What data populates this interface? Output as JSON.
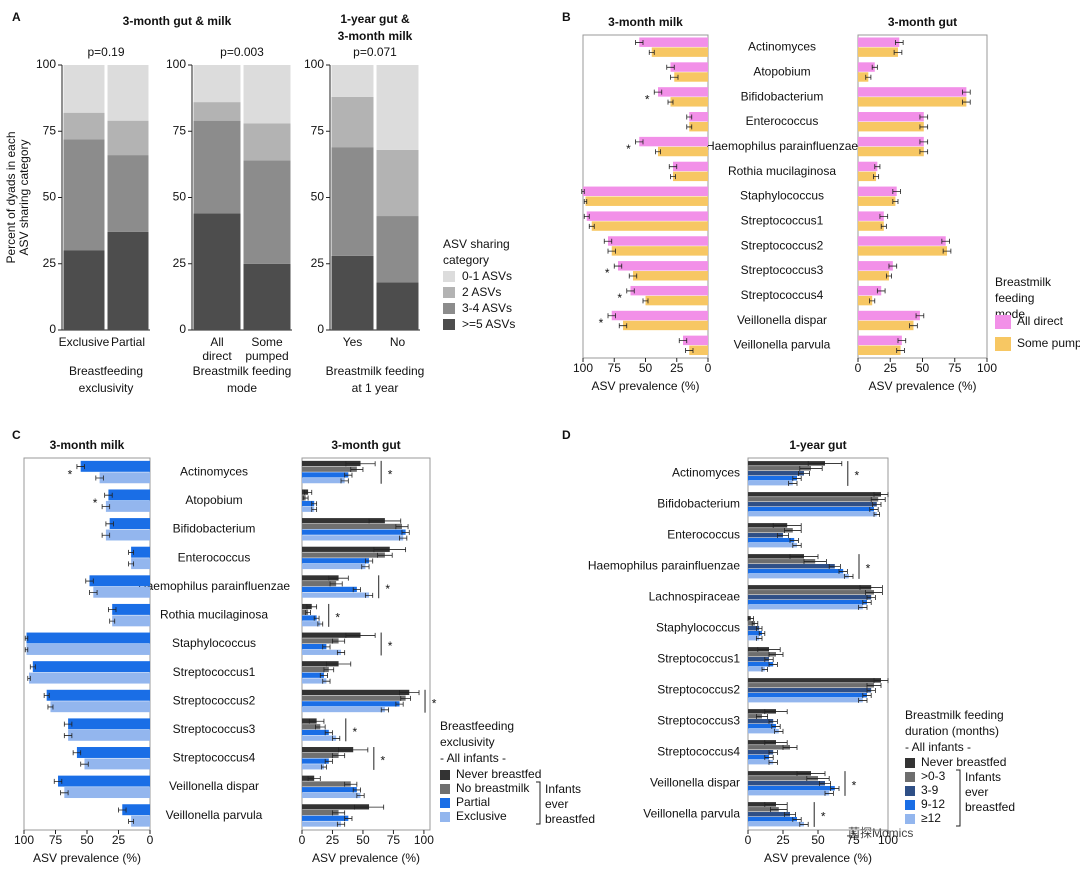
{
  "chart_data": [
    {
      "type": "stacked_bar",
      "panel_label": "A",
      "title": [
        "3-month gut & milk"
      ],
      "subtitle": "p=0.19",
      "ylabel": [
        "Percent of dyads in each",
        "ASV sharing category"
      ],
      "categories": [
        [
          "Exclusive"
        ],
        [
          "Partial"
        ]
      ],
      "xlabel": [
        "Breastfeeding",
        "exclusivity"
      ],
      "ylim": [
        0,
        100
      ],
      "yticks": [
        0,
        25,
        50,
        75,
        100
      ],
      "series": [
        {
          "color": "#4d4d4d",
          "values": [
            30,
            37
          ]
        },
        {
          "color": "#8c8c8c",
          "values": [
            42,
            29
          ]
        },
        {
          "color": "#b3b3b3",
          "values": [
            10,
            13
          ]
        },
        {
          "color": "#dcdcdc",
          "values": [
            18,
            21
          ]
        }
      ]
    },
    {
      "type": "stacked_bar",
      "subtitle": "p=0.003",
      "categories": [
        [
          "All",
          "direct"
        ],
        [
          "Some",
          "pumped"
        ]
      ],
      "xlabel": [
        "Breastmilk feeding",
        "mode"
      ],
      "ylim": [
        0,
        100
      ],
      "yticks": [
        0,
        25,
        50,
        75,
        100
      ],
      "series": [
        {
          "color": "#4d4d4d",
          "values": [
            44,
            25
          ]
        },
        {
          "color": "#8c8c8c",
          "values": [
            35,
            39
          ]
        },
        {
          "color": "#b3b3b3",
          "values": [
            7,
            14
          ]
        },
        {
          "color": "#dcdcdc",
          "values": [
            14,
            22
          ]
        }
      ]
    },
    {
      "type": "stacked_bar",
      "title": [
        "1-year gut &",
        "3-month milk"
      ],
      "subtitle": "p=0.071",
      "categories": [
        [
          "Yes"
        ],
        [
          "No"
        ]
      ],
      "xlabel": [
        "Breastmilk feeding",
        "at 1 year"
      ],
      "ylim": [
        0,
        100
      ],
      "yticks": [
        0,
        25,
        50,
        75,
        100
      ],
      "series": [
        {
          "color": "#4d4d4d",
          "values": [
            28,
            18
          ]
        },
        {
          "color": "#8c8c8c",
          "values": [
            41,
            25
          ]
        },
        {
          "color": "#b3b3b3",
          "values": [
            19,
            25
          ]
        },
        {
          "color": "#dcdcdc",
          "values": [
            12,
            32
          ]
        }
      ],
      "legend": {
        "title": [
          "ASV sharing",
          "category"
        ],
        "entries": [
          {
            "name": "0-1 ASVs",
            "color": "#dcdcdc"
          },
          {
            "name": "2 ASVs",
            "color": "#b3b3b3"
          },
          {
            "name": "3-4 ASVs",
            "color": "#8c8c8c"
          },
          {
            "name": ">=5 ASVs",
            "color": "#4d4d4d"
          }
        ]
      }
    },
    {
      "type": "hbar",
      "panel_label": "B",
      "title": "3-month milk",
      "x_reversed": true,
      "categories": [
        "Actinomyces",
        "Atopobium",
        "Bifidobacterium",
        "Enterococcus",
        "Haemophilus parainfluenzae",
        "Rothia mucilaginosa",
        "Staphylococcus",
        "Streptococcus1",
        "Streptococcus2",
        "Streptococcus3",
        "Streptococcus4",
        "Veillonella dispar",
        "Veillonella parvula"
      ],
      "markers": [
        null,
        null,
        "*",
        null,
        "*",
        null,
        null,
        null,
        null,
        "*",
        "*",
        "*",
        null
      ],
      "xlim": [
        0,
        100
      ],
      "xticks": [
        0,
        25,
        50,
        75,
        100
      ],
      "xlabel": "ASV prevalence (%)",
      "series": [
        {
          "color": "#f290e8",
          "values": [
            55,
            30,
            40,
            15,
            55,
            28,
            100,
            97,
            80,
            72,
            62,
            77,
            20
          ],
          "errors": [
            3,
            3,
            3,
            2,
            3,
            3,
            1,
            2,
            3,
            3,
            3,
            3,
            3
          ]
        },
        {
          "color": "#f7c763",
          "values": [
            45,
            27,
            30,
            15,
            40,
            28,
            98,
            93,
            77,
            60,
            50,
            68,
            15
          ],
          "errors": [
            2,
            3,
            2,
            2,
            2,
            2,
            1,
            2,
            3,
            3,
            2,
            3,
            3
          ]
        }
      ]
    },
    {
      "type": "hbar",
      "title": "3-month gut",
      "xlim": [
        0,
        100
      ],
      "xticks": [
        0,
        25,
        50,
        75,
        100
      ],
      "xlabel": "ASV prevalence (%)",
      "series": [
        {
          "name": "All direct",
          "color": "#f290e8",
          "values": [
            32,
            13,
            84,
            51,
            51,
            15,
            30,
            20,
            68,
            27,
            18,
            48,
            34
          ],
          "errors": [
            3,
            2,
            3,
            3,
            3,
            2,
            3,
            3,
            3,
            3,
            3,
            3,
            3
          ]
        },
        {
          "name": "Some pumped",
          "color": "#f7c763",
          "values": [
            31,
            8,
            84,
            51,
            51,
            14,
            29,
            20,
            69,
            24,
            11,
            43,
            33
          ],
          "errors": [
            3,
            2,
            3,
            3,
            3,
            2,
            2,
            2,
            3,
            2,
            2,
            3,
            3
          ]
        }
      ],
      "legend": {
        "title": [
          "Breastmilk",
          "feeding",
          "mode"
        ]
      }
    },
    {
      "type": "hbar",
      "panel_label": "C",
      "title": "3-month milk",
      "x_reversed": true,
      "categories": [
        "Actinomyces",
        "Atopobium",
        "Bifidobacterium",
        "Enterococcus",
        "Haemophilus parainfluenzae",
        "Rothia mucilaginosa",
        "Staphylococcus",
        "Streptococcus1",
        "Streptococcus2",
        "Streptococcus3",
        "Streptococcus4",
        "Veillonella dispar",
        "Veillonella parvula"
      ],
      "markers": [
        "*",
        "*",
        null,
        null,
        null,
        null,
        null,
        null,
        null,
        null,
        null,
        null,
        null
      ],
      "xlim": [
        0,
        100
      ],
      "xticks": [
        0,
        25,
        50,
        75,
        100
      ],
      "xlabel": "ASV prevalence (%)",
      "series": [
        {
          "color": "#1a6ee6",
          "values": [
            55,
            33,
            32,
            15,
            48,
            30,
            98,
            93,
            82,
            65,
            58,
            73,
            22
          ],
          "errors": [
            3,
            3,
            3,
            2,
            3,
            3,
            1,
            2,
            2,
            3,
            3,
            3,
            3
          ]
        },
        {
          "color": "#93b6ee",
          "values": [
            40,
            35,
            35,
            15,
            45,
            30,
            98,
            96,
            79,
            65,
            52,
            68,
            15
          ],
          "errors": [
            3,
            3,
            3,
            2,
            3,
            2,
            1,
            1,
            2,
            3,
            3,
            3,
            2
          ]
        }
      ]
    },
    {
      "type": "hbar",
      "title": "3-month gut",
      "markers": [
        "*",
        null,
        null,
        null,
        "*",
        "*",
        "*",
        null,
        "*",
        "*",
        "*",
        null,
        null
      ],
      "xlim": [
        0,
        105
      ],
      "xticks": [
        0,
        25,
        50,
        75,
        100
      ],
      "xlabel": "ASV prevalence (%)",
      "series": [
        {
          "name": "Never breastfed",
          "color": "#333333",
          "values": [
            48,
            5,
            68,
            72,
            30,
            8,
            48,
            30,
            88,
            12,
            42,
            10,
            55
          ],
          "errors": [
            12,
            3,
            13,
            13,
            8,
            4,
            12,
            10,
            8,
            6,
            12,
            5,
            12
          ]
        },
        {
          "name": "No breastmilk",
          "color": "#707070",
          "values": [
            45,
            3,
            82,
            68,
            28,
            5,
            30,
            22,
            85,
            15,
            30,
            40,
            30
          ],
          "errors": [
            5,
            2,
            5,
            6,
            5,
            2,
            5,
            4,
            4,
            4,
            5,
            5,
            5
          ]
        },
        {
          "name": "Partial",
          "color": "#1a6ee6",
          "values": [
            38,
            10,
            85,
            55,
            45,
            12,
            20,
            18,
            80,
            22,
            22,
            45,
            38
          ],
          "errors": [
            3,
            2,
            3,
            3,
            3,
            2,
            3,
            3,
            3,
            3,
            3,
            3,
            3
          ]
        },
        {
          "name": "Exclusive",
          "color": "#93b6ee",
          "values": [
            35,
            10,
            83,
            52,
            55,
            15,
            32,
            20,
            68,
            28,
            18,
            48,
            32
          ],
          "errors": [
            3,
            2,
            3,
            3,
            3,
            2,
            3,
            3,
            3,
            3,
            2,
            3,
            3
          ]
        }
      ],
      "legend": {
        "title": [
          "Breastfeeding",
          "exclusivity",
          "- All infants -"
        ],
        "group": [
          "Infants",
          "ever",
          "breastfed"
        ]
      }
    },
    {
      "type": "hbar",
      "panel_label": "D",
      "title": "1-year gut",
      "categories": [
        "Actinomyces",
        "Bifidobacterium",
        "Enterococcus",
        "Haemophilus parainfluenzae",
        "Lachnospiraceae",
        "Staphylococcus",
        "Streptococcus1",
        "Streptococcus2",
        "Streptococcus3",
        "Streptococcus4",
        "Veillonella dispar",
        "Veillonella parvula"
      ],
      "markers": [
        "*",
        null,
        null,
        "*",
        null,
        null,
        null,
        null,
        null,
        null,
        "*",
        "*"
      ],
      "xlim": [
        0,
        100
      ],
      "xticks": [
        0,
        25,
        50,
        75,
        100
      ],
      "xlabel": "ASV prevalence (%)",
      "series": [
        {
          "name": "Never breastfed",
          "color": "#333333",
          "values": [
            55,
            95,
            28,
            40,
            88,
            2,
            15,
            95,
            20,
            20,
            45,
            20
          ],
          "errors": [
            12,
            5,
            10,
            10,
            8,
            2,
            8,
            5,
            8,
            8,
            10,
            8
          ]
        },
        {
          "name": ">0-3",
          "color": "#6e6e6e",
          "values": [
            45,
            93,
            32,
            48,
            90,
            5,
            20,
            90,
            10,
            30,
            50,
            22
          ],
          "errors": [
            8,
            5,
            6,
            8,
            6,
            2,
            5,
            5,
            4,
            5,
            8,
            6
          ]
        },
        {
          "name": "3-9",
          "color": "#2f4f86",
          "values": [
            40,
            92,
            25,
            62,
            88,
            8,
            15,
            88,
            18,
            18,
            55,
            30
          ],
          "errors": [
            4,
            3,
            4,
            4,
            3,
            2,
            3,
            3,
            3,
            3,
            4,
            4
          ]
        },
        {
          "name": "9-12",
          "color": "#1a6ee6",
          "values": [
            35,
            90,
            33,
            68,
            85,
            10,
            18,
            85,
            20,
            15,
            62,
            35
          ],
          "errors": [
            3,
            3,
            3,
            3,
            3,
            2,
            3,
            3,
            3,
            3,
            3,
            3
          ]
        },
        {
          "name": "≥12",
          "color": "#93b6ee",
          "values": [
            32,
            92,
            35,
            72,
            82,
            8,
            12,
            82,
            22,
            18,
            58,
            40
          ],
          "errors": [
            3,
            2,
            3,
            3,
            3,
            2,
            2,
            3,
            3,
            3,
            3,
            3
          ]
        }
      ],
      "legend": {
        "title": [
          "Breastmilk feeding",
          "duration (months)",
          "- All infants -"
        ],
        "group": [
          "Infants",
          "ever",
          "breastfed"
        ]
      }
    }
  ],
  "watermark": "菌探Momics"
}
